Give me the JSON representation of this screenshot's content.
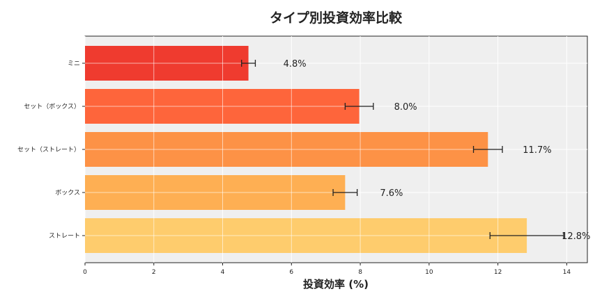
{
  "chart_data": {
    "type": "bar",
    "orientation": "horizontal",
    "title": "タイプ別投資効率比較",
    "xlabel": "投資効率 (%)",
    "ylabel": "",
    "xlim": [
      0,
      14.6
    ],
    "xticks": [
      "0",
      "2",
      "4",
      "6",
      "8",
      "10",
      "12",
      "14"
    ],
    "grid": true,
    "categories": [
      "ミニ",
      "セット（ボックス）",
      "セット（ストレート）",
      "ボックス",
      "ストレート"
    ],
    "values": [
      4.75,
      7.97,
      11.71,
      7.56,
      12.84
    ],
    "errors": [
      0.2,
      0.41,
      0.42,
      0.35,
      1.07
    ],
    "data_labels": [
      "4.8%",
      "8.0%",
      "11.7%",
      "7.6%",
      "12.8%"
    ],
    "colors": [
      "#ee3024",
      "#fe5d30",
      "#fd8c3c",
      "#feab4a",
      "#fec965"
    ],
    "background": "#efefef"
  }
}
